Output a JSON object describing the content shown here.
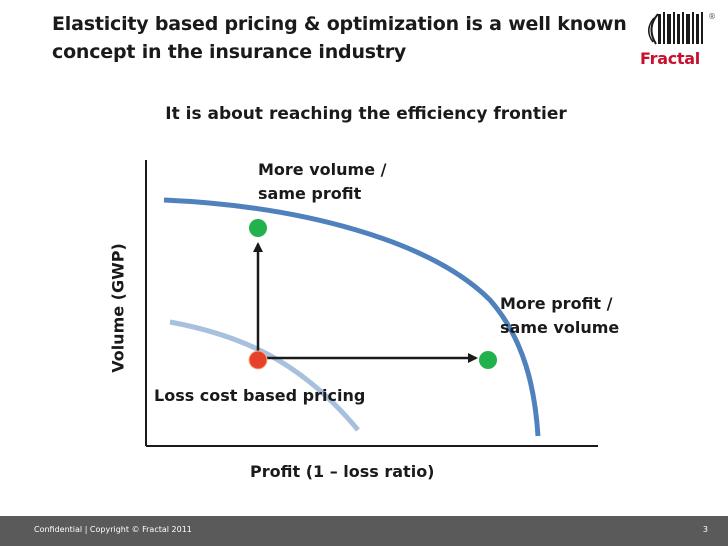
{
  "slide": {
    "title_lines": [
      "Elasticity based pricing & optimization is a well known",
      "concept in the insurance industry"
    ],
    "subtitle": "It is about reaching the efficiency frontier"
  },
  "logo": {
    "text": "Fractal",
    "reg_mark": "®"
  },
  "diagram": {
    "y_axis_label": "Volume (GWP)",
    "x_axis_label": "Profit (1 – loss ratio)",
    "label_more_volume": [
      "More volume /",
      "same profit"
    ],
    "label_more_profit": [
      "More profit /",
      "same volume"
    ],
    "label_loss_cost": "Loss cost based pricing",
    "colors": {
      "frontier": "#4f81bd",
      "current_curve": "#a6c0de",
      "start_point": "#e8412b",
      "target_point": "#22b14c",
      "axis": "#1a1a1a"
    }
  },
  "footer": {
    "text": "Confidential | Copyright © Fractal 2011",
    "page": "3"
  }
}
